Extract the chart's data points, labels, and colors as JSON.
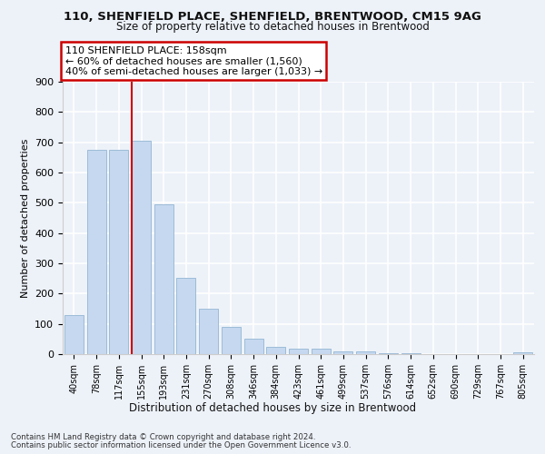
{
  "title1": "110, SHENFIELD PLACE, SHENFIELD, BRENTWOOD, CM15 9AG",
  "title2": "Size of property relative to detached houses in Brentwood",
  "xlabel": "Distribution of detached houses by size in Brentwood",
  "ylabel": "Number of detached properties",
  "categories": [
    "40sqm",
    "78sqm",
    "117sqm",
    "155sqm",
    "193sqm",
    "231sqm",
    "270sqm",
    "308sqm",
    "346sqm",
    "384sqm",
    "423sqm",
    "461sqm",
    "499sqm",
    "537sqm",
    "576sqm",
    "614sqm",
    "652sqm",
    "690sqm",
    "729sqm",
    "767sqm",
    "805sqm"
  ],
  "values": [
    130,
    675,
    675,
    705,
    495,
    252,
    150,
    90,
    52,
    23,
    18,
    18,
    10,
    8,
    4,
    2,
    1,
    1,
    1,
    0,
    6
  ],
  "bar_color": "#c5d8ef",
  "bar_edge_color": "#9dbcd8",
  "annotation_line1": "110 SHENFIELD PLACE: 158sqm",
  "annotation_line2": "← 60% of detached houses are smaller (1,560)",
  "annotation_line3": "40% of semi-detached houses are larger (1,033) →",
  "annotation_box_color": "#ffffff",
  "annotation_box_edge_color": "#cc0000",
  "vline_color": "#cc0000",
  "ylim": [
    0,
    900
  ],
  "yticks": [
    0,
    100,
    200,
    300,
    400,
    500,
    600,
    700,
    800,
    900
  ],
  "footer_line1": "Contains HM Land Registry data © Crown copyright and database right 2024.",
  "footer_line2": "Contains public sector information licensed under the Open Government Licence v3.0.",
  "bg_color": "#edf2f9",
  "plot_bg_color": "#edf2f9",
  "grid_color": "#ffffff",
  "vline_x_bar_index": 3
}
